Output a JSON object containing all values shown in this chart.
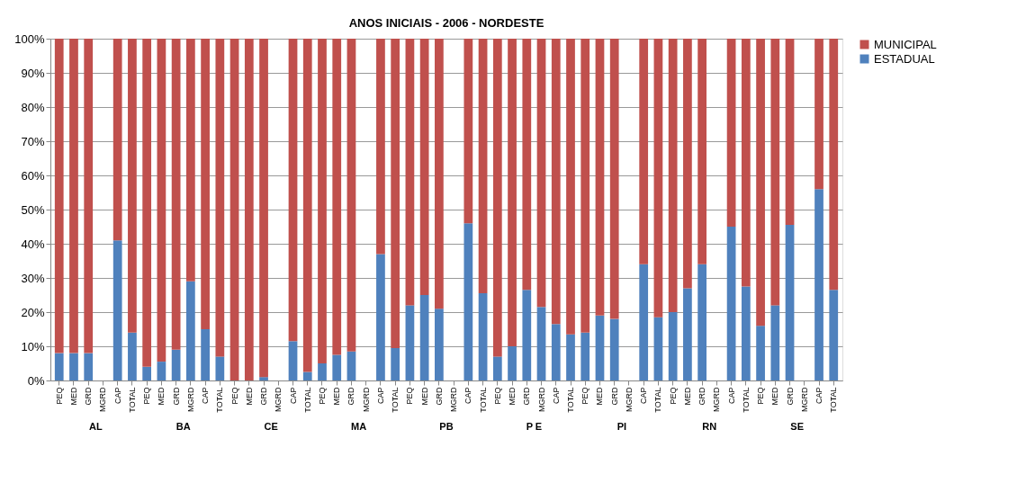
{
  "chart_data": {
    "type": "bar",
    "title": "ANOS INICIAIS - 2006 - NORDESTE",
    "stacked": true,
    "categories": [
      "PEQ",
      "MED",
      "GRD",
      "MGRD",
      "CAP",
      "TOTAL",
      "PEQ",
      "MED",
      "GRD",
      "MGRD",
      "CAP",
      "TOTAL",
      "PEQ",
      "MED",
      "GRD",
      "MGRD",
      "CAP",
      "TOTAL",
      "PEQ",
      "MED",
      "GRD",
      "MGRD",
      "CAP",
      "TOTAL",
      "PEQ",
      "MED",
      "GRD",
      "MGRD",
      "CAP",
      "TOTAL",
      "PEQ",
      "MED",
      "GRD",
      "MGRD",
      "CAP",
      "TOTAL",
      "PEQ",
      "MED",
      "GRD",
      "MGRD",
      "CAP",
      "TOTAL",
      "PEQ",
      "MED",
      "GRD",
      "MGRD",
      "CAP",
      "TOTAL",
      "PEQ",
      "MED",
      "GRD",
      "MGRD",
      "CAP",
      "TOTAL"
    ],
    "series": [
      {
        "name": "ESTADUAL",
        "color": "#4f81bd",
        "values": [
          8,
          8,
          8,
          null,
          41,
          14,
          4,
          5.5,
          9,
          29,
          15,
          7,
          0,
          0,
          1,
          null,
          11.5,
          2.5,
          5,
          7.5,
          8.5,
          null,
          37,
          9.5,
          22,
          25,
          21,
          null,
          46,
          25.5,
          7,
          10,
          26.5,
          21.5,
          16.5,
          13.5,
          14,
          19,
          18,
          null,
          34,
          18.5,
          20,
          27,
          34,
          null,
          45,
          27.5,
          16,
          22,
          45.5,
          null,
          56,
          26.5
        ]
      },
      {
        "name": "MUNICIPAL",
        "color": "#c0504d",
        "values": [
          92,
          92,
          92,
          null,
          59,
          86,
          96,
          94.5,
          91,
          71,
          85,
          93,
          100,
          100,
          99,
          null,
          88.5,
          97.5,
          95,
          92.5,
          91.5,
          null,
          63,
          90.5,
          78,
          75,
          79,
          null,
          54,
          74.5,
          93,
          90,
          73.5,
          78.5,
          83.5,
          86.5,
          86,
          81,
          82,
          null,
          66,
          81.5,
          80,
          73,
          66,
          null,
          55,
          72.5,
          84,
          78,
          54.5,
          null,
          44,
          73.5
        ]
      }
    ],
    "ylim": [
      0,
      100
    ],
    "yticks": [
      {
        "value": 0,
        "label": "0%"
      },
      {
        "value": 10,
        "label": "10%"
      },
      {
        "value": 20,
        "label": "20%"
      },
      {
        "value": 30,
        "label": "30%"
      },
      {
        "value": 40,
        "label": "40%"
      },
      {
        "value": 50,
        "label": "50%"
      },
      {
        "value": 60,
        "label": "60%"
      },
      {
        "value": 70,
        "label": "70%"
      },
      {
        "value": 80,
        "label": "80%"
      },
      {
        "value": 90,
        "label": "90%"
      },
      {
        "value": 100,
        "label": "100%"
      }
    ],
    "grid": "y",
    "legend": "right",
    "annotations": [
      "AL",
      "BA",
      "CE",
      "MA",
      "PB",
      "P E",
      "PI",
      "RN",
      "SE"
    ]
  }
}
